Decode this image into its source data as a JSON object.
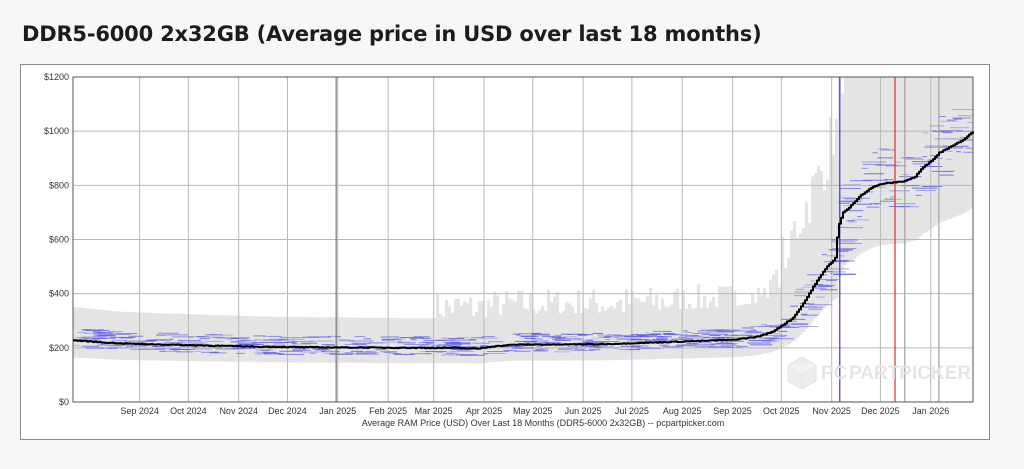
{
  "page": {
    "title": "DDR5-6000 2x32GB (Average price in USD over last 18 months)"
  },
  "watermark": {
    "text_a": "PC",
    "text_b": "PARTPICKER"
  },
  "chart_data": {
    "type": "line",
    "title": "DDR5-6000 2x32GB (Average price in USD over last 18 months)",
    "xlabel": "Average RAM Price (USD) Over Last 18 Months (DDR5-6000 2x32GB) -- pcpartpicker.com",
    "ylabel": "",
    "ylim": [
      0,
      1200
    ],
    "xlim": [
      "2024-07-22",
      "2026-01-27"
    ],
    "grid": true,
    "y_ticks": [
      0,
      200,
      400,
      600,
      800,
      1000,
      1200
    ],
    "y_tick_labels": [
      "$0",
      "$200",
      "$400",
      "$600",
      "$800",
      "$1000",
      "$1200"
    ],
    "x_tick_labels": [
      "Sep 2024",
      "Oct 2024",
      "Nov 2024",
      "Dec 2024",
      "Jan 2025",
      "Feb 2025",
      "Mar 2025",
      "Apr 2025",
      "May 2025",
      "Jun 2025",
      "Jul 2025",
      "Aug 2025",
      "Sep 2025",
      "Oct 2025",
      "Nov 2025",
      "Dec 2025",
      "Jan 2026"
    ],
    "x_tick_dates": [
      "2024-09-01",
      "2024-10-01",
      "2024-11-01",
      "2024-12-01",
      "2025-01-01",
      "2025-02-01",
      "2025-03-01",
      "2025-04-01",
      "2025-05-01",
      "2025-06-01",
      "2025-07-01",
      "2025-08-01",
      "2025-09-01",
      "2025-10-01",
      "2025-11-01",
      "2025-12-01",
      "2026-01-01"
    ],
    "series": [
      {
        "name": "",
        "color": "#000000",
        "x": [
          "2024-07-22",
          "2024-08-05",
          "2024-08-20",
          "2024-09-15",
          "2024-10-15",
          "2024-11-15",
          "2024-12-15",
          "2025-01-15",
          "2025-02-15",
          "2025-03-15",
          "2025-03-28",
          "2025-04-05",
          "2025-04-20",
          "2025-05-15",
          "2025-06-15",
          "2025-07-15",
          "2025-08-15",
          "2025-09-01",
          "2025-09-15",
          "2025-09-25",
          "2025-10-01",
          "2025-10-08",
          "2025-10-15",
          "2025-10-22",
          "2025-10-29",
          "2025-11-03",
          "2025-11-05",
          "2025-11-08",
          "2025-11-12",
          "2025-11-18",
          "2025-11-25",
          "2025-12-01",
          "2025-12-08",
          "2025-12-15",
          "2025-12-22",
          "2025-12-26",
          "2026-01-01",
          "2026-01-06",
          "2026-01-12",
          "2026-01-20",
          "2026-01-27"
        ],
        "y": [
          228,
          222,
          216,
          212,
          208,
          204,
          202,
          201,
          200,
          200,
          197,
          205,
          212,
          212,
          214,
          220,
          226,
          230,
          240,
          258,
          282,
          310,
          370,
          440,
          500,
          530,
          650,
          700,
          720,
          760,
          790,
          805,
          810,
          815,
          830,
          860,
          890,
          920,
          940,
          965,
          1000
        ]
      }
    ],
    "band_color": "#e4e4e4",
    "listing_color": "#5a5ae0",
    "vertical_markers": [
      {
        "date": "2024-12-31",
        "color": "#777777"
      },
      {
        "date": "2025-11-06",
        "color": "#3a3ad0"
      },
      {
        "date": "2025-12-10",
        "color": "#e03030"
      },
      {
        "date": "2025-12-16",
        "color": "#a0a0a0"
      },
      {
        "date": "2026-01-06",
        "color": "#a0a0a0"
      }
    ]
  }
}
